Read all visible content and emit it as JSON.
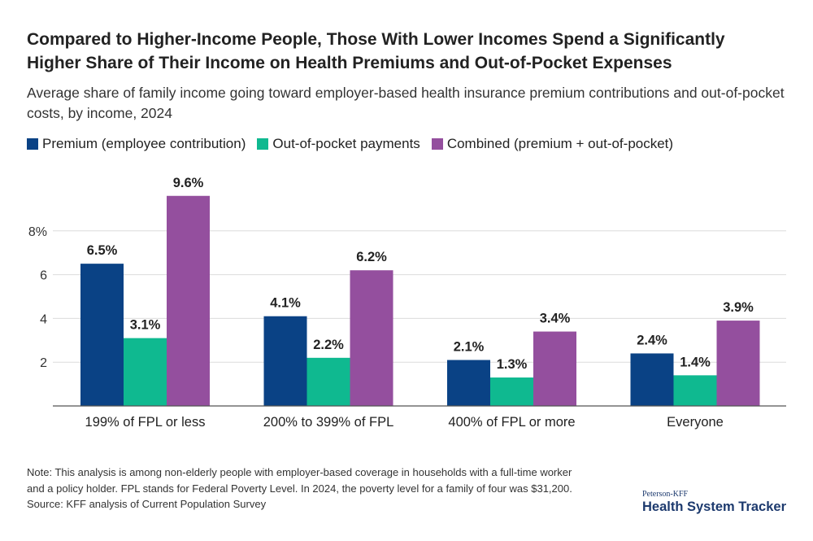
{
  "header": {
    "title_line1": "Compared to Higher-Income People, Those With Lower Incomes Spend a Significantly",
    "title_line2": "Higher Share of Their Income on Health Premiums and Out-of-Pocket Expenses",
    "subtitle": "Average share of family income going toward employer-based health insurance premium contributions and out-of-pocket costs, by income, 2024"
  },
  "legend": {
    "items": [
      {
        "label": "Premium (employee contribution)",
        "color": "#0a4285"
      },
      {
        "label": "Out-of-pocket payments",
        "color": "#0fb990"
      },
      {
        "label": "Combined (premium + out-of-pocket)",
        "color": "#944f9e"
      }
    ]
  },
  "chart_data": {
    "type": "bar",
    "title": "Compared to Higher-Income People, Those With Lower Incomes Spend a Significantly Higher Share of Their Income on Health Premiums and Out-of-Pocket Expenses",
    "categories": [
      "199% of FPL or less",
      "200% to 399% of FPL",
      "400% of FPL or more",
      "Everyone"
    ],
    "series": [
      {
        "name": "Premium (employee contribution)",
        "color": "#0a4285",
        "values": [
          6.5,
          4.1,
          2.1,
          2.4
        ],
        "labels": [
          "6.5%",
          "4.1%",
          "2.1%",
          "2.4%"
        ]
      },
      {
        "name": "Out-of-pocket payments",
        "color": "#0fb990",
        "values": [
          3.1,
          2.2,
          1.3,
          1.4
        ],
        "labels": [
          "3.1%",
          "2.2%",
          "1.3%",
          "1.4%"
        ]
      },
      {
        "name": "Combined (premium + out-of-pocket)",
        "color": "#944f9e",
        "values": [
          9.6,
          6.2,
          3.4,
          3.9
        ],
        "labels": [
          "9.6%",
          "6.2%",
          "3.4%",
          "3.9%"
        ]
      }
    ],
    "yticks": [
      2,
      4,
      6,
      8
    ],
    "ytick_labels": [
      "2",
      "4",
      "6",
      "8%"
    ],
    "ylim": [
      0,
      10.5
    ],
    "xlabel": "",
    "ylabel": "",
    "grid": true,
    "legend_position": "top-left"
  },
  "footer": {
    "note_line1": "Note: This analysis is among non-elderly people with employer-based coverage in households with a full-time worker",
    "note_line2": "and a policy holder. FPL stands for Federal Poverty Level. In 2024, the poverty level for a family of four was $31,200.",
    "source": "Source: KFF analysis of Current Population Survey",
    "brand_small": "Peterson-KFF",
    "brand_main": "Health System Tracker"
  }
}
